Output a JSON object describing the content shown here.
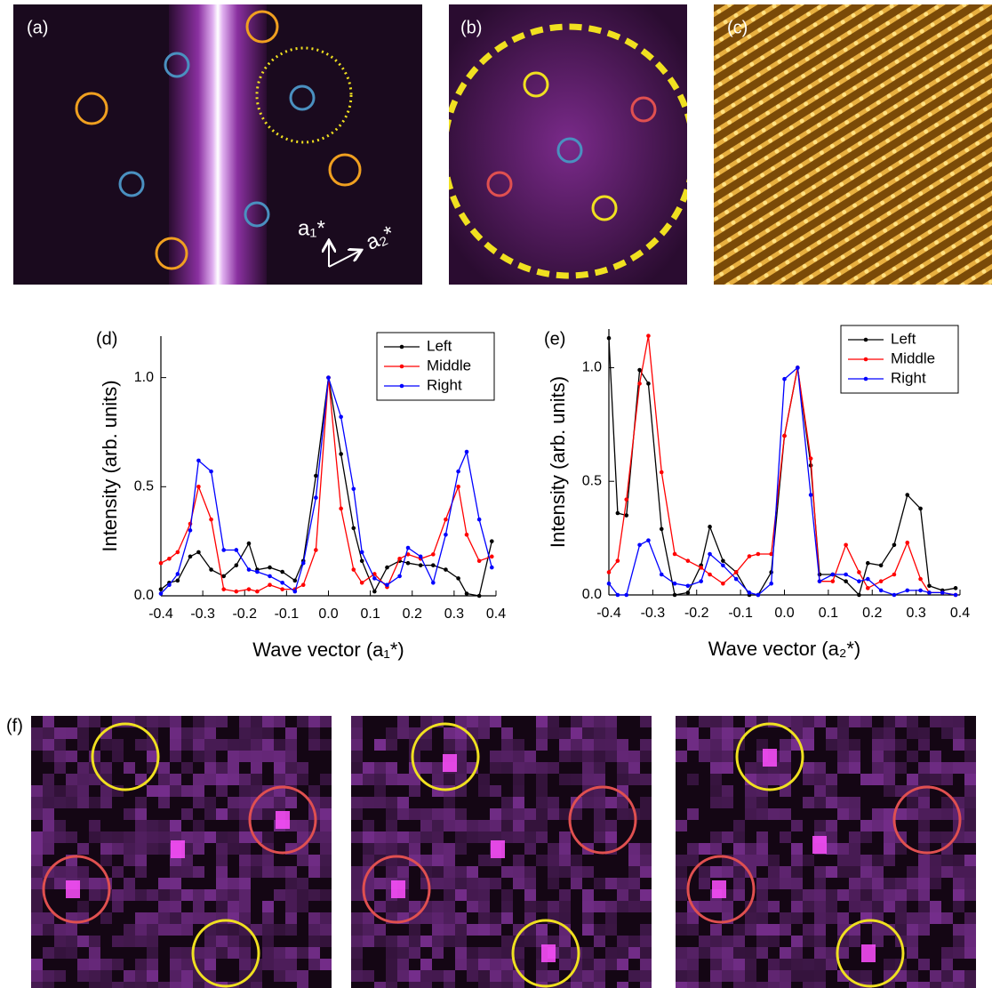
{
  "panels": {
    "a": {
      "label": "(a)",
      "annotations": [
        "a₁*",
        "a₂*"
      ]
    },
    "b": {
      "label": "(b)"
    },
    "c": {
      "label": "(c)"
    },
    "f": {
      "label": "(f)"
    }
  },
  "chart_data": [
    {
      "type": "line",
      "label": "(d)",
      "xlabel": "Wave vector (a₁*)",
      "ylabel": "Intensity (arb. units)",
      "x": [
        -0.4,
        -0.38,
        -0.36,
        -0.33,
        -0.31,
        -0.28,
        -0.25,
        -0.22,
        -0.19,
        -0.17,
        -0.14,
        -0.11,
        -0.08,
        -0.06,
        -0.03,
        0,
        0.03,
        0.06,
        0.08,
        0.11,
        0.14,
        0.17,
        0.19,
        0.22,
        0.25,
        0.28,
        0.31,
        0.33,
        0.36,
        0.39
      ],
      "series": [
        {
          "name": "Left",
          "color": "#000000",
          "values": [
            0.03,
            0.06,
            0.07,
            0.18,
            0.2,
            0.12,
            0.09,
            0.14,
            0.24,
            0.12,
            0.13,
            0.11,
            0.07,
            0.16,
            0.55,
            1.0,
            0.65,
            0.31,
            0.16,
            0.02,
            0.13,
            0.16,
            0.15,
            0.14,
            0.14,
            0.12,
            0.08,
            0.01,
            0.0,
            0.25
          ]
        },
        {
          "name": "Middle",
          "color": "#ff0000",
          "values": [
            0.15,
            0.17,
            0.2,
            0.33,
            0.5,
            0.35,
            0.03,
            0.02,
            0.03,
            0.02,
            0.05,
            0.03,
            0.03,
            0.05,
            0.21,
            1.0,
            0.4,
            0.12,
            0.06,
            0.1,
            0.04,
            0.17,
            0.19,
            0.17,
            0.19,
            0.35,
            0.5,
            0.28,
            0.16,
            0.18
          ]
        },
        {
          "name": "Right",
          "color": "#0000ff",
          "values": [
            0.01,
            0.05,
            0.1,
            0.3,
            0.62,
            0.57,
            0.21,
            0.21,
            0.12,
            0.11,
            0.09,
            0.06,
            0.02,
            0.15,
            0.45,
            1.0,
            0.82,
            0.49,
            0.2,
            0.08,
            0.05,
            0.09,
            0.22,
            0.18,
            0.06,
            0.28,
            0.57,
            0.66,
            0.35,
            0.13
          ]
        }
      ],
      "xlim": [
        -0.4,
        0.4
      ],
      "ylim": [
        0,
        1.19
      ],
      "xticks": [
        -0.4,
        -0.3,
        -0.2,
        -0.1,
        {
          "value": 0,
          "label": "0.0"
        },
        0.1,
        0.2,
        0.3,
        0.4
      ],
      "yticks": [
        {
          "value": 0,
          "label": "0.0"
        },
        0.5,
        {
          "value": 1,
          "label": "1.0"
        }
      ],
      "legend": "upper right"
    },
    {
      "type": "line",
      "label": "(e)",
      "xlabel": "Wave vector (a₂*)",
      "ylabel": "Intensity (arb. units)",
      "x": [
        -0.4,
        -0.38,
        -0.36,
        -0.33,
        -0.31,
        -0.28,
        -0.25,
        -0.22,
        -0.19,
        -0.17,
        -0.14,
        -0.11,
        -0.08,
        -0.06,
        -0.03,
        0,
        0.03,
        0.06,
        0.08,
        0.11,
        0.14,
        0.17,
        0.19,
        0.22,
        0.25,
        0.28,
        0.31,
        0.33,
        0.36,
        0.39
      ],
      "series": [
        {
          "name": "Left",
          "color": "#000000",
          "values": [
            1.13,
            0.36,
            0.35,
            0.99,
            0.93,
            0.29,
            0.0,
            0.01,
            0.13,
            0.3,
            0.15,
            0.1,
            0.0,
            0.0,
            0.1,
            0.7,
            1.0,
            0.57,
            0.09,
            0.09,
            0.06,
            0.0,
            0.14,
            0.13,
            0.22,
            0.44,
            0.38,
            0.04,
            0.02,
            0.03
          ]
        },
        {
          "name": "Middle",
          "color": "#ff0000",
          "values": [
            0.1,
            0.15,
            0.42,
            0.93,
            1.14,
            0.54,
            0.18,
            0.15,
            0.12,
            0.09,
            0.05,
            0.1,
            0.17,
            0.18,
            0.18,
            0.7,
            1.0,
            0.6,
            0.06,
            0.06,
            0.22,
            0.1,
            0.03,
            0.06,
            0.09,
            0.23,
            0.07,
            0.01,
            0.01,
            0.0
          ]
        },
        {
          "name": "Right",
          "color": "#0000ff",
          "values": [
            0.05,
            0.0,
            0.0,
            0.22,
            0.24,
            0.09,
            0.05,
            0.04,
            0.06,
            0.18,
            0.13,
            0.07,
            0.01,
            0.0,
            0.05,
            0.95,
            1.0,
            0.44,
            0.06,
            0.09,
            0.09,
            0.06,
            0.07,
            0.02,
            0.0,
            0.02,
            0.02,
            0.01,
            0.01,
            0.0
          ]
        }
      ],
      "xlim": [
        -0.4,
        0.4
      ],
      "ylim": [
        0,
        1.17
      ],
      "xticks": [
        -0.4,
        -0.3,
        -0.2,
        -0.1,
        {
          "value": 0,
          "label": "0.0"
        },
        0.1,
        0.2,
        0.3,
        0.4
      ],
      "yticks": [
        {
          "value": 0,
          "label": "0.0"
        },
        0.5,
        {
          "value": 1,
          "label": "1.0"
        }
      ],
      "legend": "upper right"
    }
  ]
}
